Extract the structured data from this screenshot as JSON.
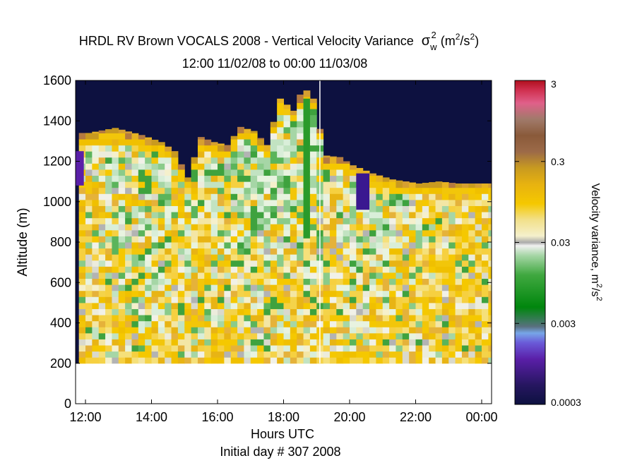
{
  "title": {
    "line1_prefix": "HRDL RV Brown VOCALS 2008 - Vertical Velocity Variance",
    "sigma": "σ",
    "sigma_sub": "w",
    "sigma_sup": "2",
    "units_open": "(m",
    "units_sup1": "2",
    "units_mid": "/s",
    "units_sup2": "2",
    "units_close": ")",
    "line2": "12:00 11/02/08 to 00:00 11/03/08"
  },
  "chart_data": {
    "type": "heatmap",
    "xlabel": "Hours UTC",
    "xlabel2": "Initial day # 307  2008",
    "ylabel": "Altitude (m)",
    "xlim": [
      11.7,
      24.3
    ],
    "ylim": [
      0,
      1600
    ],
    "x_ticks": [
      12,
      14,
      16,
      18,
      20,
      22,
      24
    ],
    "x_tick_labels": [
      "12:00",
      "14:00",
      "16:00",
      "18:00",
      "20:00",
      "22:00",
      "00:00"
    ],
    "y_ticks": [
      0,
      200,
      400,
      600,
      800,
      1000,
      1200,
      1400,
      1600
    ],
    "y_tick_labels": [
      "0",
      "200",
      "400",
      "600",
      "800",
      "1000",
      "1200",
      "1400",
      "1600"
    ],
    "data_bottom_altitude": 200,
    "gap_line_hour": 19.1,
    "background_color": "#0d1140",
    "colorbar": {
      "label": "Velocity variance, m",
      "label_sup1": "2",
      "label_mid": "/s",
      "label_sup2": "2",
      "scale": "log",
      "range": [
        0.0003,
        3
      ],
      "ticks": [
        0.0003,
        0.003,
        0.03,
        0.3,
        3
      ],
      "tick_labels": [
        "0.0003",
        "0.003",
        "0.03",
        "0.3",
        "3"
      ]
    },
    "column_tops_m": [
      {
        "hour": 12.0,
        "top": 1340
      },
      {
        "hour": 12.8,
        "top": 1365
      },
      {
        "hour": 13.6,
        "top": 1330
      },
      {
        "hour": 14.2,
        "top": 1295
      },
      {
        "hour": 14.6,
        "top": 1250
      },
      {
        "hour": 15.0,
        "top": 1120
      },
      {
        "hour": 15.4,
        "top": 1320
      },
      {
        "hour": 15.8,
        "top": 1295
      },
      {
        "hour": 16.2,
        "top": 1280
      },
      {
        "hour": 16.6,
        "top": 1370
      },
      {
        "hour": 17.0,
        "top": 1350
      },
      {
        "hour": 17.4,
        "top": 1280
      },
      {
        "hour": 17.8,
        "top": 1510
      },
      {
        "hour": 18.2,
        "top": 1450
      },
      {
        "hour": 18.5,
        "top": 1570
      },
      {
        "hour": 18.9,
        "top": 1490
      },
      {
        "hour": 19.1,
        "top": 1230
      },
      {
        "hour": 19.6,
        "top": 1220
      },
      {
        "hour": 20.0,
        "top": 1180
      },
      {
        "hour": 20.6,
        "top": 1140
      },
      {
        "hour": 21.2,
        "top": 1110
      },
      {
        "hour": 22.0,
        "top": 1090
      },
      {
        "hour": 22.6,
        "top": 1100
      },
      {
        "hour": 23.2,
        "top": 1090
      },
      {
        "hour": 24.0,
        "top": 1090
      }
    ]
  }
}
